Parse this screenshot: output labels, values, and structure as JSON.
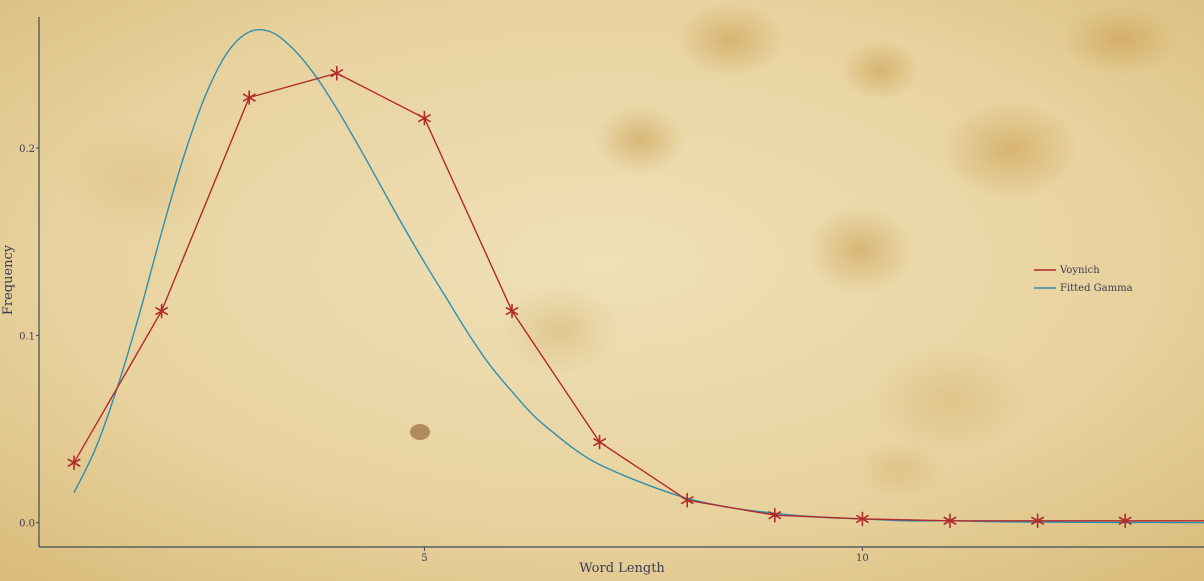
{
  "chart_data": {
    "type": "line",
    "title": "",
    "xlabel": "Word Length",
    "ylabel": "Frequency",
    "xlim": [
      0.6,
      13.9
    ],
    "ylim": [
      -0.013,
      0.27
    ],
    "x_ticks": [
      {
        "value": 5,
        "label": "5"
      },
      {
        "value": 10,
        "label": "10"
      }
    ],
    "y_ticks": [
      {
        "value": 0.0,
        "label": "0.0"
      },
      {
        "value": 0.1,
        "label": "0.1"
      },
      {
        "value": 0.2,
        "label": "0.2"
      }
    ],
    "grid": false,
    "legend_position": "right",
    "series": [
      {
        "name": "Voynich",
        "style": "line-markers",
        "marker": "star",
        "color": "#b22a2a",
        "x": [
          1,
          2,
          3,
          4,
          5,
          6,
          7,
          8,
          9,
          10,
          11,
          12,
          13,
          14
        ],
        "y": [
          0.032,
          0.113,
          0.227,
          0.24,
          0.216,
          0.113,
          0.043,
          0.012,
          0.004,
          0.002,
          0.001,
          0.001,
          0.001,
          0.001
        ]
      },
      {
        "name": "Fitted Gamma",
        "style": "smooth-line",
        "color": "#2f8fae",
        "x": [
          1.0,
          1.25,
          1.5,
          1.75,
          2.0,
          2.25,
          2.5,
          2.75,
          3.0,
          3.25,
          3.5,
          3.75,
          4.0,
          4.25,
          4.5,
          4.75,
          5.0,
          5.25,
          5.5,
          5.75,
          6.0,
          6.25,
          6.5,
          6.75,
          7.0,
          7.5,
          8.0,
          8.5,
          9.0,
          9.5,
          10.0,
          10.5,
          11.0,
          11.5,
          12.0,
          12.5,
          13.0,
          13.5,
          14.0
        ],
        "y": [
          0.016,
          0.04,
          0.073,
          0.112,
          0.155,
          0.195,
          0.228,
          0.251,
          0.262,
          0.262,
          0.253,
          0.239,
          0.221,
          0.201,
          0.18,
          0.159,
          0.139,
          0.12,
          0.101,
          0.084,
          0.07,
          0.057,
          0.047,
          0.038,
          0.031,
          0.021,
          0.013,
          0.008,
          0.005,
          0.003,
          0.002,
          0.001,
          0.001,
          0.0005,
          0.0003,
          0.0002,
          0.0001,
          0.0001,
          0.0
        ]
      }
    ]
  }
}
